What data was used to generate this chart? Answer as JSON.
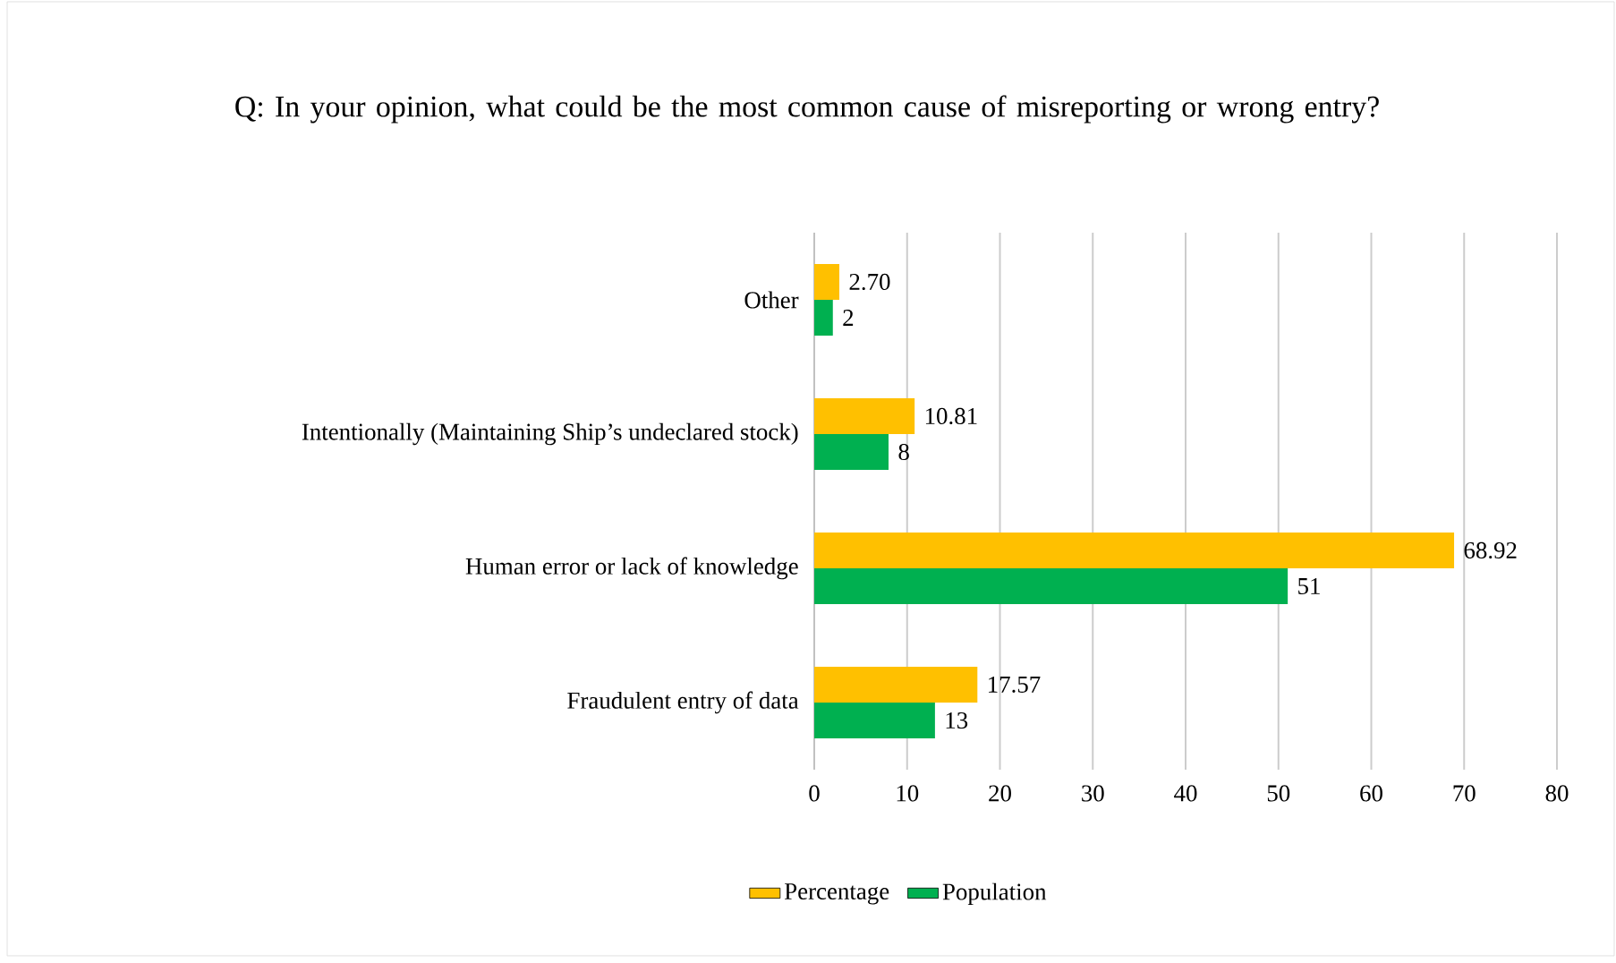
{
  "chart_data": {
    "type": "bar",
    "orientation": "horizontal",
    "title": "Q: In your opinion, what could be the most common cause of misreporting or wrong entry?",
    "categories": [
      "Other",
      "Intentionally (Maintaining Ship’s undeclared stock)",
      "Human error or lack of knowledge",
      "Fraudulent entry of data"
    ],
    "series": [
      {
        "name": "Percentage",
        "color": "#ffc000",
        "values": [
          2.7,
          10.81,
          68.92,
          17.57
        ],
        "value_labels": [
          "2.70",
          "10.81",
          "68.92",
          "17.57"
        ]
      },
      {
        "name": "Population",
        "color": "#00b050",
        "values": [
          2,
          8,
          51,
          13
        ],
        "value_labels": [
          "2",
          "8",
          "51",
          "13"
        ]
      }
    ],
    "xlim": [
      0,
      80
    ],
    "xticks": [
      0,
      10,
      20,
      30,
      40,
      50,
      60,
      70,
      80
    ],
    "grid": "x",
    "legend": "bottom"
  }
}
